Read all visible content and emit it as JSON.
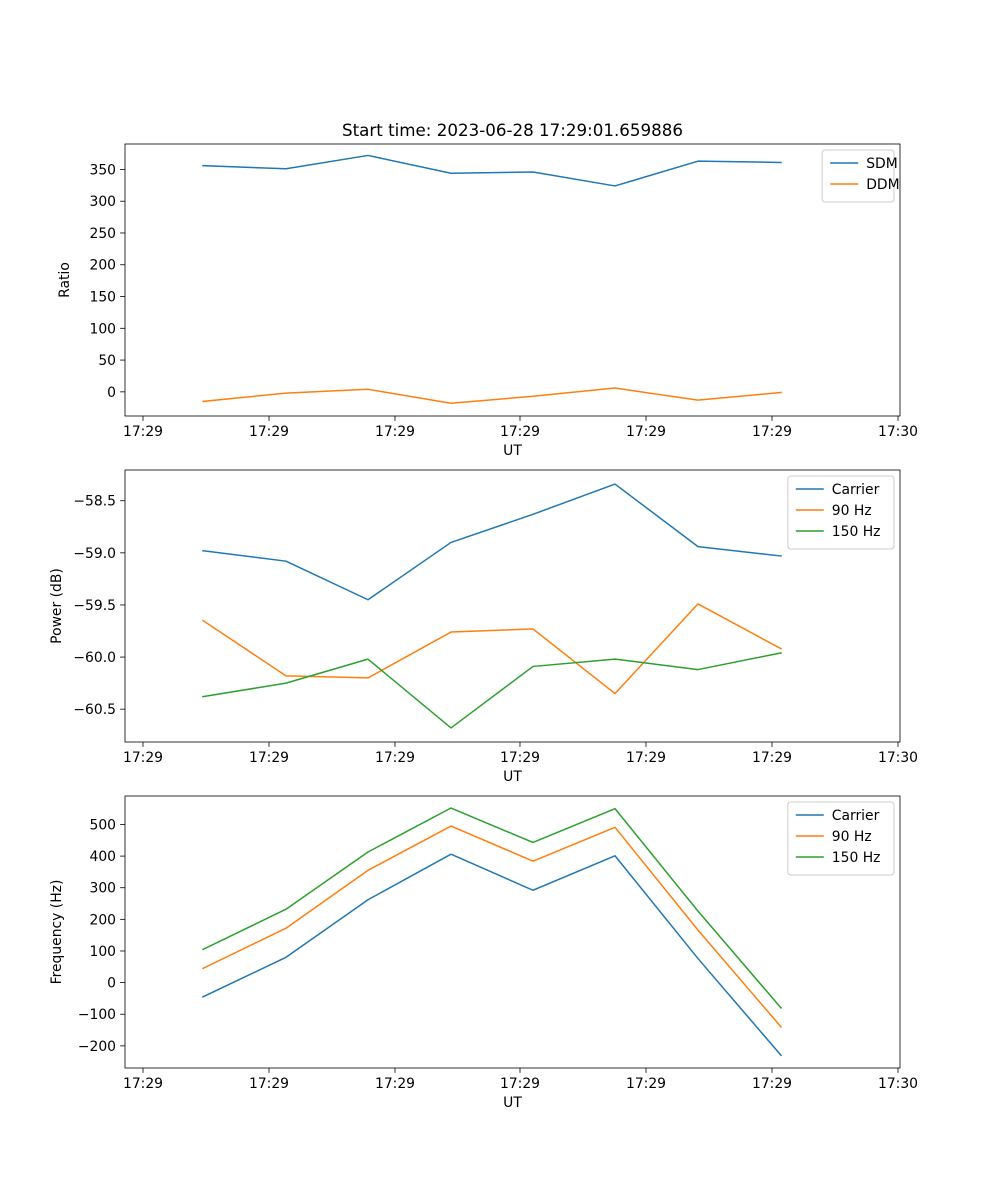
{
  "chart_data": [
    {
      "type": "line",
      "title": "Start time: 2023-06-28 17:29:01.659886",
      "xlabel": "UT",
      "ylabel": "Ratio",
      "x_tick_labels": [
        "17:29",
        "17:29",
        "17:29",
        "17:29",
        "17:29",
        "17:29",
        "17:30"
      ],
      "y_ticks": [
        0,
        50,
        100,
        150,
        200,
        250,
        300,
        350
      ],
      "ylim": [
        -38,
        390
      ],
      "legend_position": "top-right",
      "grid": false,
      "series": [
        {
          "name": "SDM",
          "color": "#1f77b4",
          "values": [
            356,
            351,
            372,
            344,
            346,
            324,
            363,
            361
          ]
        },
        {
          "name": "DDM",
          "color": "#ff7f0e",
          "values": [
            -15,
            -2,
            4,
            -18,
            -7,
            6,
            -13,
            -1
          ]
        }
      ]
    },
    {
      "type": "line",
      "title": "",
      "xlabel": "UT",
      "ylabel": "Power (dB)",
      "x_tick_labels": [
        "17:29",
        "17:29",
        "17:29",
        "17:29",
        "17:29",
        "17:29",
        "17:30"
      ],
      "y_ticks": [
        -60.5,
        -60.0,
        -59.5,
        -59.0,
        -58.5
      ],
      "y_tick_labels": [
        "−60.5",
        "−60.0",
        "−59.5",
        "−59.0",
        "−58.5"
      ],
      "ylim": [
        -60.815,
        -58.205
      ],
      "legend_position": "top-right",
      "grid": false,
      "series": [
        {
          "name": "Carrier",
          "color": "#1f77b4",
          "values": [
            -58.98,
            -59.08,
            -59.45,
            -58.9,
            -58.63,
            -58.34,
            -58.94,
            -59.03
          ]
        },
        {
          "name": "90 Hz",
          "color": "#ff7f0e",
          "values": [
            -59.65,
            -60.18,
            -60.2,
            -59.76,
            -59.73,
            -60.35,
            -59.49,
            -59.92
          ]
        },
        {
          "name": "150 Hz",
          "color": "#2ca02c",
          "values": [
            -60.38,
            -60.25,
            -60.02,
            -60.68,
            -60.09,
            -60.02,
            -60.12,
            -59.96
          ]
        }
      ]
    },
    {
      "type": "line",
      "title": "",
      "xlabel": "UT",
      "ylabel": "Frequency (Hz)",
      "x_tick_labels": [
        "17:29",
        "17:29",
        "17:29",
        "17:29",
        "17:29",
        "17:29",
        "17:30"
      ],
      "y_ticks": [
        -200,
        -100,
        0,
        100,
        200,
        300,
        400,
        500
      ],
      "y_tick_labels": [
        "−200",
        "−100",
        "0",
        "100",
        "200",
        "300",
        "400",
        "500"
      ],
      "ylim": [
        -270,
        590
      ],
      "legend_position": "top-right",
      "grid": false,
      "series": [
        {
          "name": "Carrier",
          "color": "#1f77b4",
          "values": [
            -45,
            80,
            262,
            406,
            292,
            401,
            76,
            -230
          ]
        },
        {
          "name": "90 Hz",
          "color": "#ff7f0e",
          "values": [
            45,
            172,
            355,
            495,
            384,
            491,
            166,
            -140
          ]
        },
        {
          "name": "150 Hz",
          "color": "#2ca02c",
          "values": [
            105,
            232,
            413,
            552,
            443,
            550,
            226,
            -80
          ]
        }
      ]
    }
  ]
}
